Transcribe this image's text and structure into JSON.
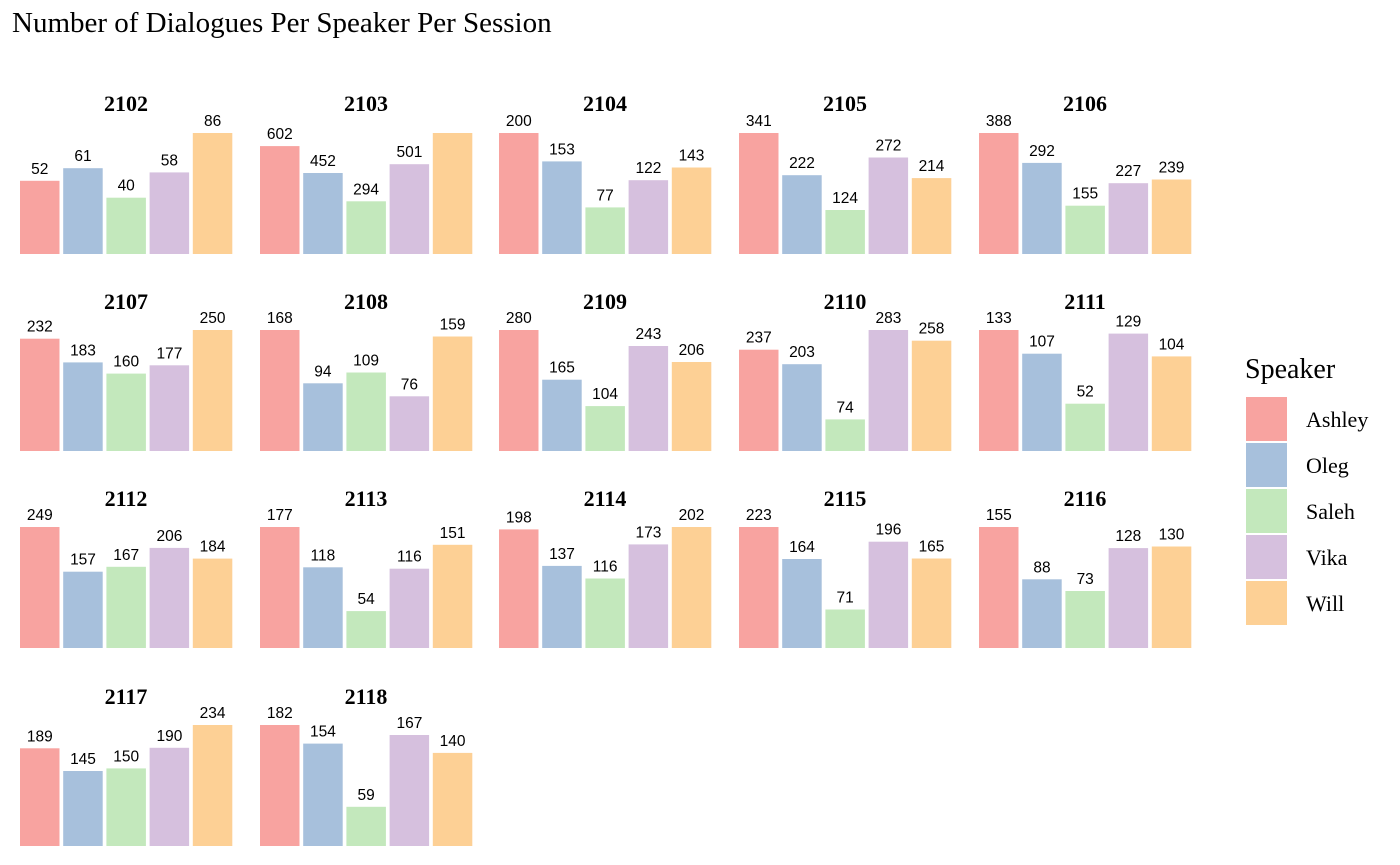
{
  "chart_data": {
    "type": "bar",
    "title": "Number of Dialogues Per Speaker Per Session",
    "legend": {
      "title": "Speaker",
      "position": "right"
    },
    "series": [
      {
        "name": "Ashley",
        "color": "#f8a3a0"
      },
      {
        "name": "Oleg",
        "color": "#a7c0dc"
      },
      {
        "name": "Saleh",
        "color": "#c3e8bc"
      },
      {
        "name": "Vika",
        "color": "#d6c0de"
      },
      {
        "name": "Will",
        "color": "#fdd095"
      }
    ],
    "facet_by": "session",
    "y_scale": "free",
    "grid": false,
    "panels": [
      {
        "session": "2102",
        "values": [
          52,
          61,
          40,
          58,
          86
        ],
        "labels": [
          "52",
          "61",
          "40",
          "58",
          "86"
        ]
      },
      {
        "session": "2103",
        "values": [
          602,
          452,
          294,
          501,
          675
        ],
        "labels": [
          "602",
          "452",
          "294",
          "501",
          ""
        ]
      },
      {
        "session": "2104",
        "values": [
          200,
          153,
          77,
          122,
          143
        ],
        "labels": [
          "200",
          "153",
          "77",
          "122",
          "143"
        ]
      },
      {
        "session": "2105",
        "values": [
          341,
          222,
          124,
          272,
          214
        ],
        "labels": [
          "341",
          "222",
          "124",
          "272",
          "214"
        ]
      },
      {
        "session": "2106",
        "values": [
          388,
          292,
          155,
          227,
          239
        ],
        "labels": [
          "388",
          "292",
          "155",
          "227",
          "239"
        ]
      },
      {
        "session": "2107",
        "values": [
          232,
          183,
          160,
          177,
          250
        ],
        "labels": [
          "232",
          "183",
          "160",
          "177",
          "250"
        ]
      },
      {
        "session": "2108",
        "values": [
          168,
          94,
          109,
          76,
          159
        ],
        "labels": [
          "168",
          "94",
          "109",
          "76",
          "159"
        ]
      },
      {
        "session": "2109",
        "values": [
          280,
          165,
          104,
          243,
          206
        ],
        "labels": [
          "280",
          "165",
          "104",
          "243",
          "206"
        ]
      },
      {
        "session": "2110",
        "values": [
          237,
          203,
          74,
          283,
          258
        ],
        "labels": [
          "237",
          "203",
          "74",
          "283",
          "258"
        ]
      },
      {
        "session": "2111",
        "values": [
          133,
          107,
          52,
          129,
          104
        ],
        "labels": [
          "133",
          "107",
          "52",
          "129",
          "104"
        ]
      },
      {
        "session": "2112",
        "values": [
          249,
          157,
          167,
          206,
          184
        ],
        "labels": [
          "249",
          "157",
          "167",
          "206",
          "184"
        ]
      },
      {
        "session": "2113",
        "values": [
          177,
          118,
          54,
          116,
          151
        ],
        "labels": [
          "177",
          "118",
          "54",
          "116",
          "151"
        ]
      },
      {
        "session": "2114",
        "values": [
          198,
          137,
          116,
          173,
          202
        ],
        "labels": [
          "198",
          "137",
          "116",
          "173",
          "202"
        ]
      },
      {
        "session": "2115",
        "values": [
          223,
          164,
          71,
          196,
          165
        ],
        "labels": [
          "223",
          "164",
          "71",
          "196",
          "165"
        ]
      },
      {
        "session": "2116",
        "values": [
          155,
          88,
          73,
          128,
          130
        ],
        "labels": [
          "155",
          "88",
          "73",
          "128",
          "130"
        ]
      },
      {
        "session": "2117",
        "values": [
          189,
          145,
          150,
          190,
          234
        ],
        "labels": [
          "189",
          "145",
          "150",
          "190",
          "234"
        ]
      },
      {
        "session": "2118",
        "values": [
          182,
          154,
          59,
          167,
          140
        ],
        "labels": [
          "182",
          "154",
          "59",
          "167",
          "140"
        ]
      }
    ]
  }
}
